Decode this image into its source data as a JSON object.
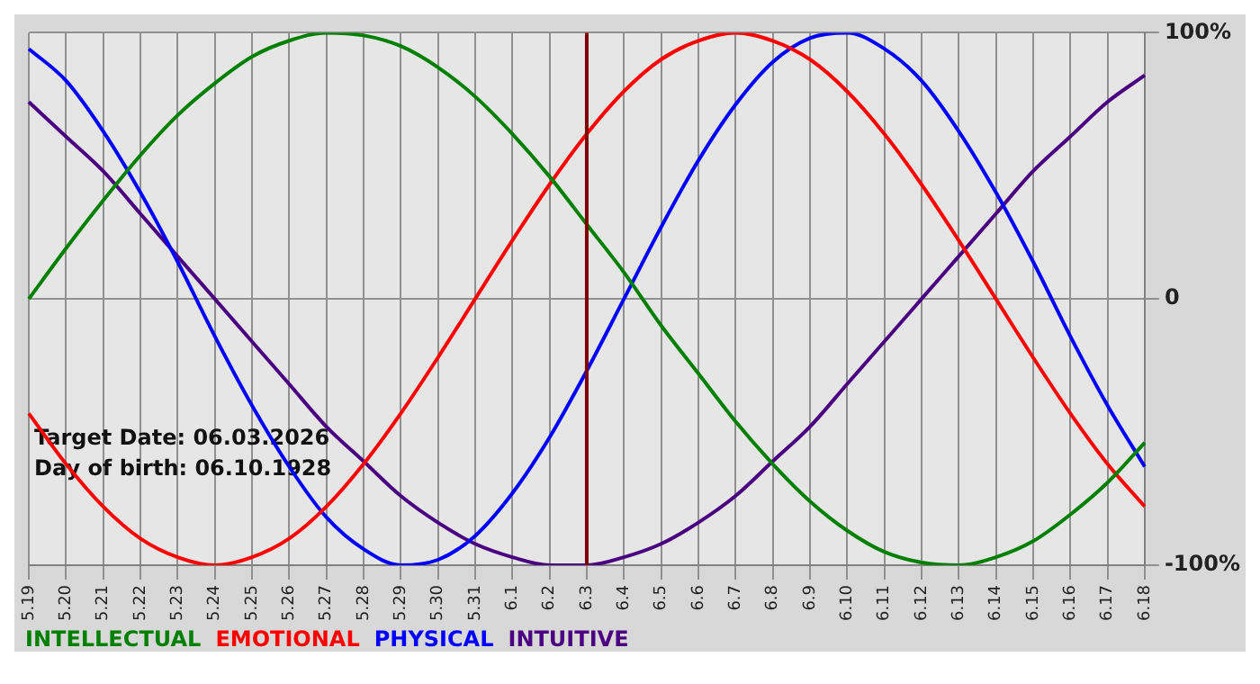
{
  "chart_data": {
    "type": "line",
    "categories": [
      "5.19",
      "5.20",
      "5.21",
      "5.22",
      "5.23",
      "5.24",
      "5.25",
      "5.26",
      "5.27",
      "5.28",
      "5.29",
      "5.30",
      "5.31",
      "6.1",
      "6.2",
      "6.3",
      "6.4",
      "6.5",
      "6.6",
      "6.7",
      "6.8",
      "6.9",
      "6.10",
      "6.11",
      "6.12",
      "6.13",
      "6.14",
      "6.15",
      "6.16",
      "6.17",
      "6.18"
    ],
    "series": [
      {
        "name": "INTELLECTUAL",
        "color": "#008000",
        "values": [
          0,
          19,
          37,
          54,
          69,
          81,
          91,
          97,
          100,
          99,
          95,
          87,
          76,
          62,
          46,
          28,
          10,
          -10,
          -28,
          -46,
          -62,
          -76,
          -87,
          -95,
          -99,
          -100,
          -97,
          -91,
          -81,
          -69,
          -54
        ]
      },
      {
        "name": "EMOTIONAL",
        "color": "#ff0000",
        "values": [
          -43,
          -62,
          -78,
          -90,
          -97,
          -100,
          -97,
          -90,
          -78,
          -62,
          -43,
          -22,
          0,
          22,
          43,
          62,
          78,
          90,
          97,
          100,
          97,
          90,
          78,
          62,
          43,
          22,
          0,
          -22,
          -43,
          -62,
          -78
        ]
      },
      {
        "name": "PHYSICAL",
        "color": "#0000ff",
        "values": [
          94,
          82,
          63,
          40,
          14,
          -14,
          -40,
          -63,
          -82,
          -94,
          -100,
          -98,
          -89,
          -73,
          -52,
          -27,
          0,
          27,
          52,
          73,
          89,
          98,
          100,
          94,
          82,
          63,
          40,
          14,
          -14,
          -40,
          -63
        ]
      },
      {
        "name": "INTUITIVE",
        "color": "#4b0082",
        "values": [
          74,
          61,
          48,
          32,
          16,
          0,
          -16,
          -32,
          -48,
          -61,
          -74,
          -84,
          -92,
          -97,
          -100,
          -100,
          -97,
          -92,
          -84,
          -74,
          -61,
          -48,
          -32,
          -16,
          0,
          16,
          32,
          48,
          61,
          74,
          84
        ]
      }
    ],
    "ylim": [
      -100,
      100
    ],
    "yticks": [
      {
        "value": -100,
        "label": "-100%"
      },
      0,
      {
        "value": 100,
        "label": "100%"
      }
    ],
    "grid": true,
    "legend": "bottom",
    "marker": "none",
    "line_style": "solid",
    "ref_lines": [
      {
        "axis": "x",
        "value": "6.3",
        "color": "#800000"
      }
    ],
    "annotations": [
      "Target Date: 06.03.2026",
      "Day of birth: 06.10.1928"
    ]
  }
}
